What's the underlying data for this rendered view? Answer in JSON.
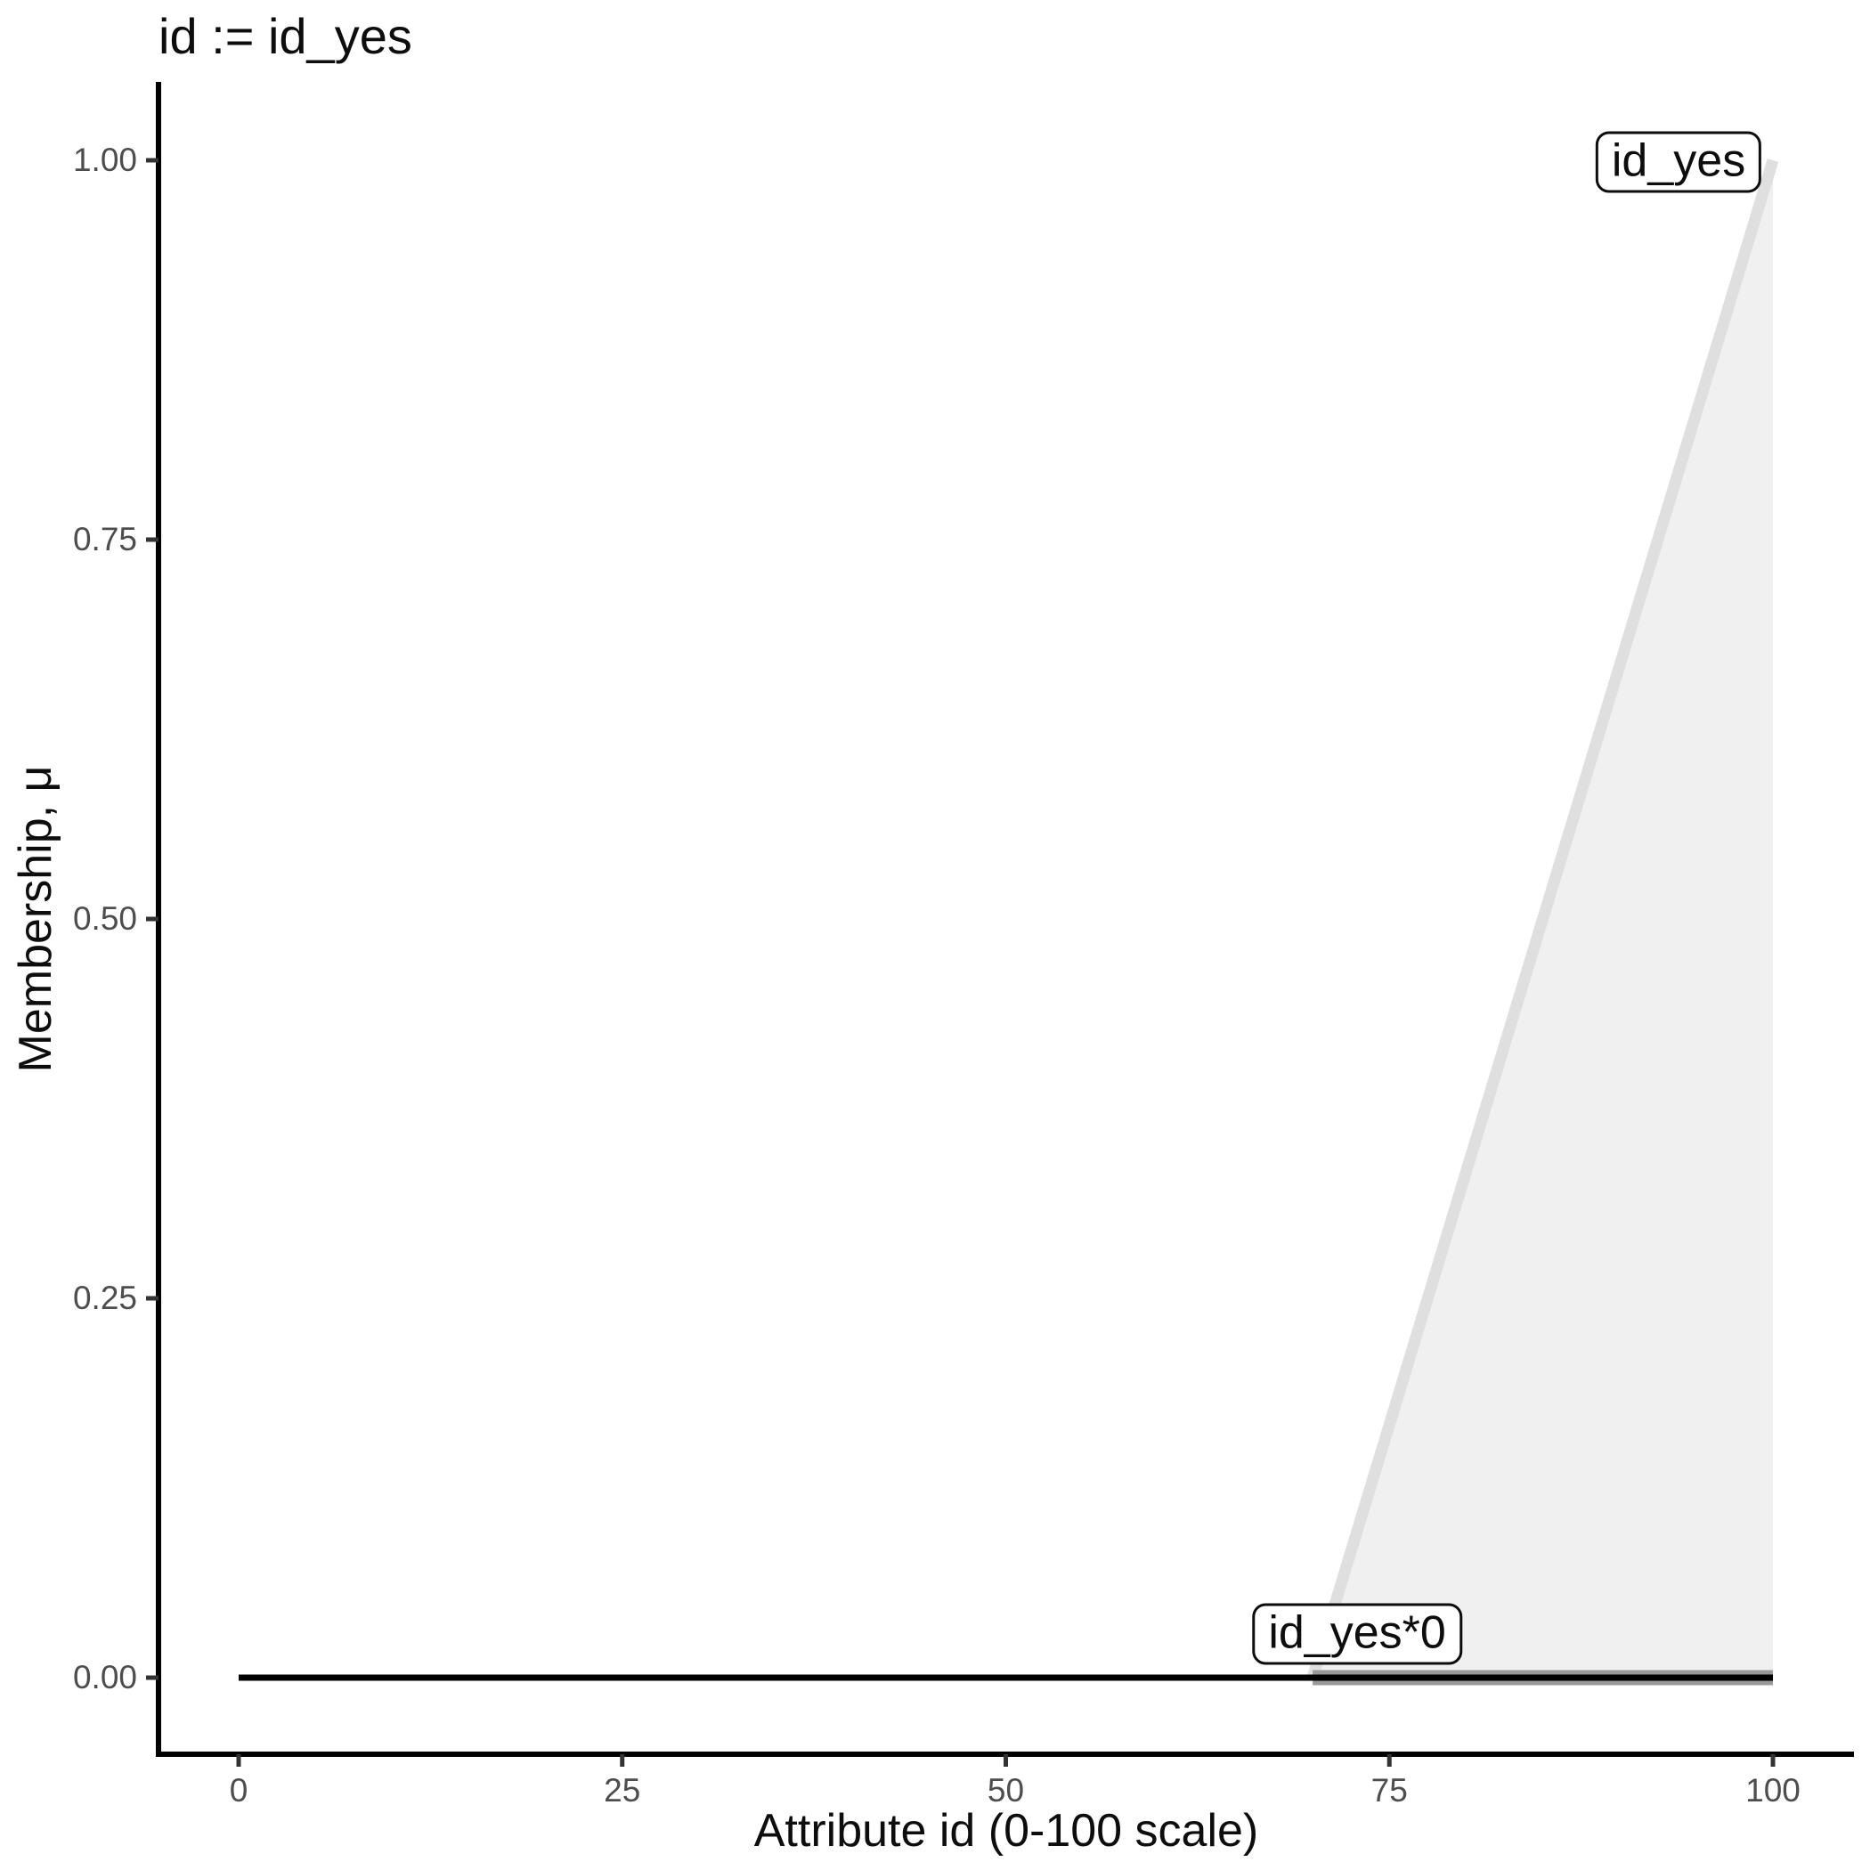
{
  "title": "id := id_yes",
  "chart_data": {
    "type": "area",
    "title": "id := id_yes",
    "xlabel": "Attribute id (0-100 scale)",
    "ylabel": "Membership, μ",
    "xlim": [
      0,
      105
    ],
    "ylim": [
      0,
      1
    ],
    "grid": false,
    "legend": "none",
    "xticks": {
      "values": [
        0,
        25,
        50,
        75,
        100
      ],
      "labels": [
        "0",
        "25",
        "50",
        "75",
        "100"
      ]
    },
    "yticks": {
      "values": [
        0,
        0.25,
        0.5,
        0.75,
        1
      ],
      "labels": [
        "0.00",
        "0.25",
        "0.50",
        "0.75",
        "1.00"
      ]
    },
    "series": [
      {
        "name": "id_yes-fill",
        "type": "polygon",
        "points": [
          [
            70,
            0
          ],
          [
            100,
            1
          ],
          [
            100,
            0
          ]
        ],
        "fill": "#f0f0f0"
      },
      {
        "name": "id_yes",
        "type": "line",
        "points": [
          [
            70,
            0
          ],
          [
            100,
            1
          ]
        ],
        "color": "#dfdfdf",
        "width": 13
      },
      {
        "name": "id_yes*0",
        "type": "line",
        "points": [
          [
            70,
            0
          ],
          [
            100,
            0
          ]
        ],
        "color": "#999999",
        "width": 17
      },
      {
        "name": "aggregate-baseline",
        "type": "line",
        "points": [
          [
            0,
            0
          ],
          [
            100,
            0
          ]
        ],
        "color": "#000000",
        "width": 7
      }
    ],
    "annotations": [
      {
        "text": "id_yes",
        "x": 93.85,
        "y": 0.999
      },
      {
        "text": "id_yes*0",
        "x": 72.9,
        "y": 0.029
      }
    ],
    "axis_color": "#000000",
    "tick_color": "#333333",
    "tick_label_color": "#4d4d4d",
    "text_color": "#0d0d0d",
    "background_color": "#ffffff"
  }
}
